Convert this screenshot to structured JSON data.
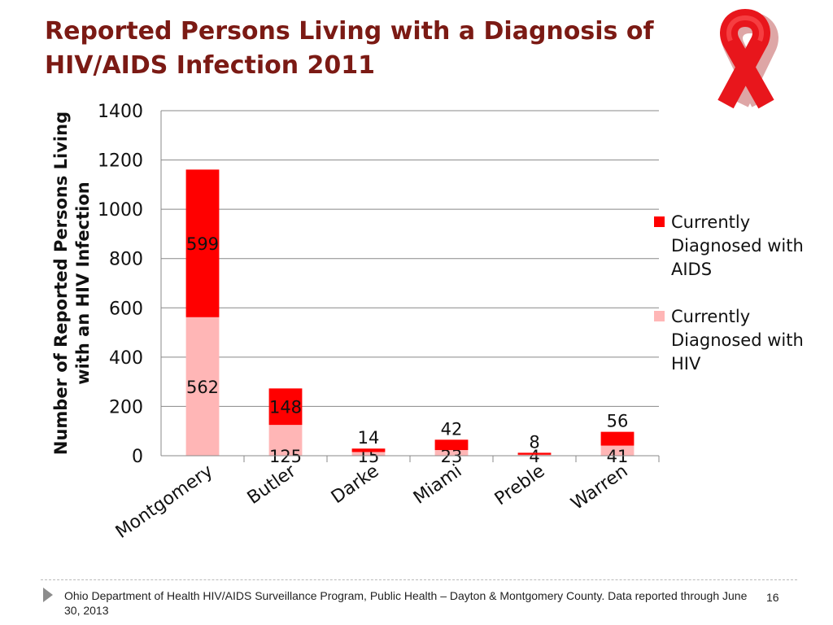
{
  "slide": {
    "title": "Reported Persons Living with a Diagnosis of HIV/AIDS Infection 2011",
    "footer": "Ohio Department of Health HIV/AIDS Surveillance Program, Public Health – Dayton & Montgomery County.  Data reported through June 30, 2013",
    "page_number": "16",
    "ribbon_icon": "red-ribbon-icon"
  },
  "colors": {
    "aids": "#ff0000",
    "hiv": "#ffb6b6",
    "ribbon": "#e8161c",
    "title": "#7b1a14"
  },
  "chart_data": {
    "type": "bar",
    "stacked": true,
    "title": "",
    "xlabel": "",
    "ylabel": "Number of Reported Persons Living with an HIV Infection",
    "ylim": [
      0,
      1400
    ],
    "yticks": [
      0,
      200,
      400,
      600,
      800,
      1000,
      1200,
      1400
    ],
    "grid": true,
    "legend_position": "right",
    "categories": [
      "Montgomery",
      "Butler",
      "Darke",
      "Miami",
      "Preble",
      "Warren"
    ],
    "series": [
      {
        "name": "Currently Diagnosed with HIV",
        "values": [
          562,
          125,
          15,
          23,
          4,
          41
        ],
        "color": "#ffb6b6"
      },
      {
        "name": "Currently Diagnosed with AIDS",
        "values": [
          599,
          148,
          14,
          42,
          8,
          56
        ],
        "color": "#ff0000"
      }
    ]
  }
}
